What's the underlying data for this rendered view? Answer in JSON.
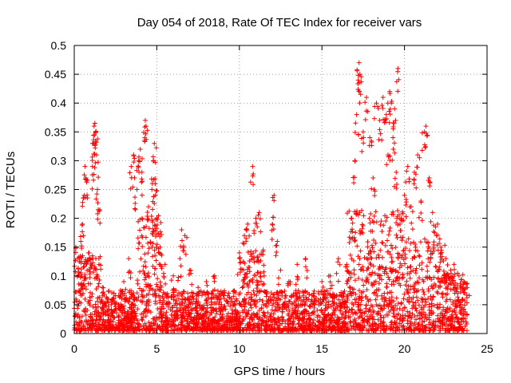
{
  "chart_data": {
    "type": "scatter",
    "title": "Day 054 of 2018, Rate Of TEC Index for receiver vars",
    "xlabel": "GPS time / hours",
    "ylabel": "ROTI / TECUs",
    "xlim": [
      0,
      25
    ],
    "ylim": [
      0,
      0.5
    ],
    "xticks": [
      0,
      5,
      10,
      15,
      20,
      25
    ],
    "yticks": [
      0,
      0.05,
      0.1,
      0.15,
      0.2,
      0.25,
      0.3,
      0.35,
      0.4,
      0.45,
      0.5
    ],
    "grid": true,
    "marker": "+",
    "color": "#ff0000",
    "series": [
      {
        "name": "vars",
        "points": [
          [
            0.1,
            0.15
          ],
          [
            0.2,
            0.13
          ],
          [
            0.4,
            0.16
          ],
          [
            0.5,
            0.19
          ],
          [
            0.6,
            0.24
          ],
          [
            0.65,
            0.29
          ],
          [
            0.7,
            0.27
          ],
          [
            0.9,
            0.14
          ],
          [
            1.1,
            0.29
          ],
          [
            1.15,
            0.33
          ],
          [
            1.2,
            0.36
          ],
          [
            1.25,
            0.365
          ],
          [
            1.3,
            0.35
          ],
          [
            1.35,
            0.31
          ],
          [
            1.4,
            0.25
          ],
          [
            1.45,
            0.215
          ],
          [
            1.5,
            0.12
          ],
          [
            1.7,
            0.08
          ],
          [
            2.0,
            0.06
          ],
          [
            2.4,
            0.07
          ],
          [
            2.7,
            0.05
          ],
          [
            3.0,
            0.09
          ],
          [
            3.3,
            0.13
          ],
          [
            3.45,
            0.29
          ],
          [
            3.6,
            0.31
          ],
          [
            3.8,
            0.25
          ],
          [
            3.9,
            0.3
          ],
          [
            4.0,
            0.32
          ],
          [
            4.1,
            0.28
          ],
          [
            4.3,
            0.37
          ],
          [
            4.35,
            0.36
          ],
          [
            4.5,
            0.22
          ],
          [
            4.7,
            0.25
          ],
          [
            4.8,
            0.3
          ],
          [
            4.85,
            0.33
          ],
          [
            4.9,
            0.26
          ],
          [
            5.0,
            0.2
          ],
          [
            5.2,
            0.15
          ],
          [
            5.5,
            0.12
          ],
          [
            6.0,
            0.1
          ],
          [
            6.4,
            0.13
          ],
          [
            6.5,
            0.18
          ],
          [
            6.7,
            0.17
          ],
          [
            7.0,
            0.11
          ],
          [
            7.5,
            0.08
          ],
          [
            8.0,
            0.09
          ],
          [
            8.5,
            0.1
          ],
          [
            9.0,
            0.07
          ],
          [
            9.5,
            0.06
          ],
          [
            10.0,
            0.14
          ],
          [
            10.3,
            0.17
          ],
          [
            10.5,
            0.19
          ],
          [
            10.8,
            0.29
          ],
          [
            11.0,
            0.2
          ],
          [
            11.2,
            0.21
          ],
          [
            11.5,
            0.1
          ],
          [
            12.0,
            0.19
          ],
          [
            12.1,
            0.24
          ],
          [
            12.3,
            0.16
          ],
          [
            12.5,
            0.11
          ],
          [
            13.0,
            0.09
          ],
          [
            13.5,
            0.12
          ],
          [
            14.0,
            0.13
          ],
          [
            14.5,
            0.07
          ],
          [
            15.0,
            0.09
          ],
          [
            15.5,
            0.1
          ],
          [
            16.0,
            0.13
          ],
          [
            16.5,
            0.12
          ],
          [
            16.8,
            0.2
          ],
          [
            17.0,
            0.3
          ],
          [
            17.1,
            0.38
          ],
          [
            17.2,
            0.44
          ],
          [
            17.25,
            0.47
          ],
          [
            17.3,
            0.45
          ],
          [
            17.5,
            0.35
          ],
          [
            17.7,
            0.41
          ],
          [
            17.9,
            0.34
          ],
          [
            18.1,
            0.27
          ],
          [
            18.3,
            0.4
          ],
          [
            18.5,
            0.37
          ],
          [
            18.7,
            0.41
          ],
          [
            18.9,
            0.38
          ],
          [
            19.0,
            0.31
          ],
          [
            19.1,
            0.42
          ],
          [
            19.2,
            0.4
          ],
          [
            19.3,
            0.34
          ],
          [
            19.4,
            0.39
          ],
          [
            19.5,
            0.28
          ],
          [
            19.6,
            0.46
          ],
          [
            19.8,
            0.2
          ],
          [
            20.0,
            0.24
          ],
          [
            20.2,
            0.29
          ],
          [
            20.4,
            0.22
          ],
          [
            20.6,
            0.28
          ],
          [
            20.8,
            0.31
          ],
          [
            21.0,
            0.23
          ],
          [
            21.2,
            0.35
          ],
          [
            21.3,
            0.36
          ],
          [
            21.5,
            0.27
          ],
          [
            21.7,
            0.21
          ],
          [
            22.0,
            0.19
          ],
          [
            22.2,
            0.15
          ],
          [
            22.5,
            0.13
          ],
          [
            22.8,
            0.11
          ],
          [
            23.0,
            0.12
          ],
          [
            23.3,
            0.1
          ],
          [
            23.6,
            0.09
          ],
          [
            23.8,
            0.08
          ]
        ],
        "band": {
          "description": "dense background cloud",
          "x_range": [
            0,
            23.8
          ],
          "typical_y_range": [
            0.005,
            0.12
          ]
        }
      }
    ]
  }
}
